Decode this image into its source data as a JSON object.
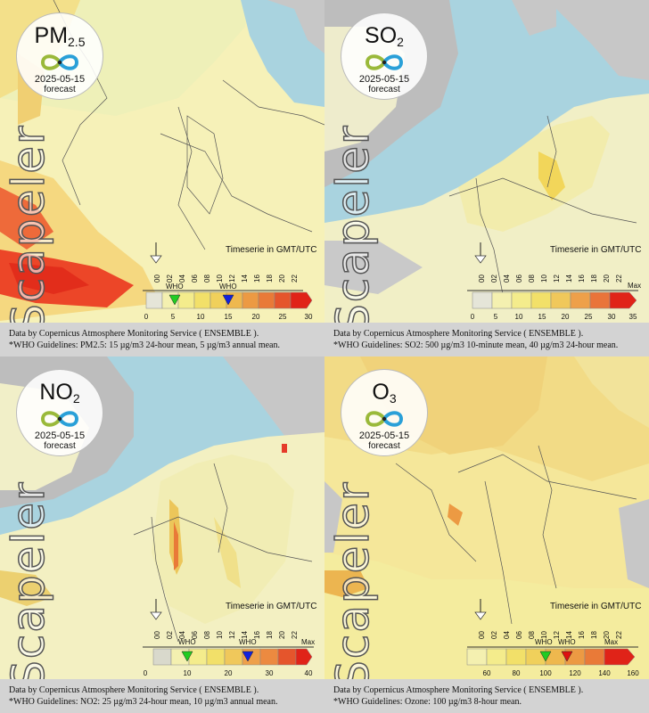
{
  "panels": [
    {
      "pollutant": "PM",
      "pollutant_sub": "2.5",
      "date": "2025-05-15",
      "forecast": "forecast",
      "brand": "Scapeler",
      "timeserie_label": "Timeserie in GMT/UTC",
      "hours": [
        "00",
        "02",
        "04",
        "06",
        "08",
        "10",
        "12",
        "14",
        "16",
        "18",
        "20",
        "22"
      ],
      "scale_ticks": [
        "0",
        "5",
        "10",
        "15",
        "20",
        "25",
        "30"
      ],
      "max_label": "",
      "who_labels": [
        "WHO",
        "WHO"
      ],
      "footer_line1": "Data by Copernicus Atmosphere Monitoring Service ( ENSEMBLE ).",
      "footer_line2": "*WHO Guidelines: PM2.5: 15 µg/m3 24-hour mean, 5 µg/m3 annual mean.",
      "who_colors": [
        "#22cc22",
        "#1122dd"
      ]
    },
    {
      "pollutant": "SO",
      "pollutant_sub": "2",
      "date": "2025-05-15",
      "forecast": "forecast",
      "brand": "Scapeler",
      "timeserie_label": "Timeserie in GMT/UTC",
      "hours": [
        "00",
        "02",
        "04",
        "06",
        "08",
        "10",
        "12",
        "14",
        "16",
        "18",
        "20",
        "22"
      ],
      "scale_ticks": [
        "0",
        "5",
        "10",
        "15",
        "20",
        "25",
        "30",
        "35"
      ],
      "max_label": "Max",
      "who_labels": [],
      "footer_line1": "Data by Copernicus Atmosphere Monitoring Service ( ENSEMBLE ).",
      "footer_line2": "*WHO Guidelines: SO2: 500 µg/m3 10-minute mean, 40 µg/m3 24-hour mean.",
      "who_colors": []
    },
    {
      "pollutant": "NO",
      "pollutant_sub": "2",
      "date": "2025-05-15",
      "forecast": "forecast",
      "brand": "Scapeler",
      "timeserie_label": "Timeserie in GMT/UTC",
      "hours": [
        "00",
        "02",
        "04",
        "06",
        "08",
        "10",
        "12",
        "14",
        "16",
        "18",
        "20",
        "22"
      ],
      "scale_ticks": [
        "0",
        "10",
        "20",
        "30",
        "40"
      ],
      "max_label": "Max",
      "who_labels": [
        "WHO",
        "WHO"
      ],
      "footer_line1": "Data by Copernicus Atmosphere Monitoring Service ( ENSEMBLE ).",
      "footer_line2": "*WHO Guidelines: NO2: 25 µg/m3 24-hour mean, 10 µg/m3 annual mean.",
      "who_colors": [
        "#22cc22",
        "#1122dd"
      ]
    },
    {
      "pollutant": "O",
      "pollutant_sub": "3",
      "date": "2025-05-15",
      "forecast": "forecast",
      "brand": "Scapeler",
      "timeserie_label": "Timeserie in GMT/UTC",
      "hours": [
        "00",
        "02",
        "04",
        "06",
        "08",
        "10",
        "12",
        "14",
        "16",
        "18",
        "20",
        "22"
      ],
      "scale_ticks": [
        "60",
        "80",
        "100",
        "120",
        "140",
        "160"
      ],
      "max_label": "Max",
      "who_labels": [
        "WHO",
        "WHO"
      ],
      "footer_line1": "Data by Copernicus Atmosphere Monitoring Service ( ENSEMBLE ).",
      "footer_line2": "*WHO Guidelines: Ozone: 100 µg/m3 8-hour mean.",
      "who_colors": [
        "#22cc22",
        "#dd1111"
      ]
    }
  ],
  "colors": {
    "sea": "#a9d3df",
    "land_low": "#f3f0b4",
    "land_mid": "#f3e38a",
    "land_high": "#eec060",
    "hot": "#e8412a",
    "nodata": "#b8b8b8",
    "footer_bg": "#d3d3d3"
  }
}
